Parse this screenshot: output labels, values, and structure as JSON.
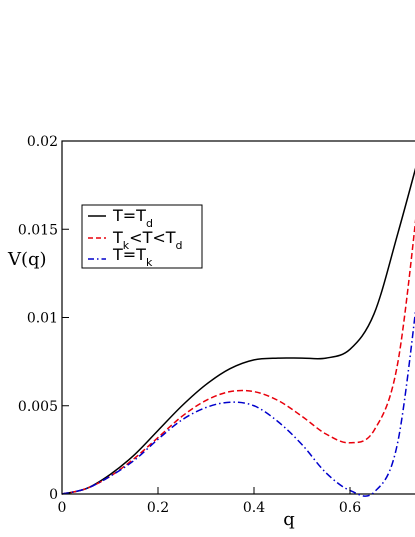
{
  "chart_data": {
    "type": "line",
    "title": "",
    "xlabel": "q",
    "ylabel": "V(q)",
    "xlim": [
      0,
      0.75
    ],
    "ylim": [
      0,
      0.02
    ],
    "xticks": [
      "0",
      "0.2",
      "0.4",
      "0.6"
    ],
    "yticks": [
      "0",
      "0.005",
      "0.01",
      "0.015",
      "0.02"
    ],
    "grid": false,
    "legend_position": "upper-left",
    "legend": [
      {
        "main": "T=T",
        "sub": "d"
      },
      {
        "parts": [
          "T",
          "k",
          "<T<T",
          "d"
        ]
      },
      {
        "main": "T=T",
        "sub": "k"
      }
    ],
    "series": [
      {
        "color": "#000000",
        "dash": "solid",
        "x": [
          0,
          0.05,
          0.1,
          0.15,
          0.2,
          0.25,
          0.3,
          0.35,
          0.4,
          0.45,
          0.5,
          0.55,
          0.6,
          0.65,
          0.7,
          0.75
        ],
        "y": [
          0,
          0.0003,
          0.0011,
          0.0022,
          0.0036,
          0.005,
          0.0062,
          0.0071,
          0.0076,
          0.0077,
          0.0077,
          0.0077,
          0.0082,
          0.0102,
          0.0148,
          0.0198
        ]
      },
      {
        "color": "#e8000b",
        "dash": "dashed",
        "x": [
          0,
          0.05,
          0.1,
          0.15,
          0.2,
          0.25,
          0.3,
          0.35,
          0.4,
          0.45,
          0.5,
          0.55,
          0.6,
          0.65,
          0.7,
          0.75
        ],
        "y": [
          0,
          0.0003,
          0.001,
          0.002,
          0.0032,
          0.0044,
          0.0053,
          0.0058,
          0.0058,
          0.0053,
          0.0044,
          0.0034,
          0.0029,
          0.0036,
          0.0075,
          0.0188
        ]
      },
      {
        "color": "#0000cc",
        "dash": "dashdot",
        "x": [
          0,
          0.05,
          0.1,
          0.15,
          0.2,
          0.25,
          0.3,
          0.35,
          0.4,
          0.45,
          0.5,
          0.55,
          0.6,
          0.65,
          0.7,
          0.75
        ],
        "y": [
          0,
          0.0003,
          0.001,
          0.0019,
          0.0031,
          0.0042,
          0.0049,
          0.0052,
          0.005,
          0.0041,
          0.0028,
          0.0012,
          0.0002,
          0.0001,
          0.003,
          0.0135
        ]
      }
    ]
  }
}
